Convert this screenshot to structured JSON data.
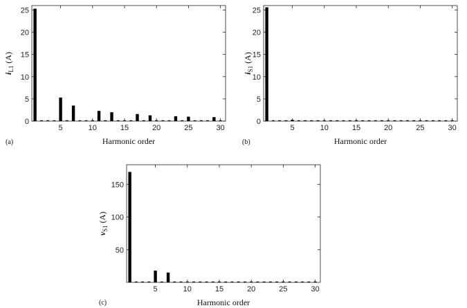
{
  "chart_data": [
    {
      "type": "bar",
      "panel_label": "(a)",
      "xlabel": "Harmonic order",
      "ylabel": "i",
      "ylabel_sub": "L1",
      "ylabel_unit": "(A)",
      "xlim": [
        0.5,
        30.8
      ],
      "ylim": [
        0,
        26
      ],
      "xticks": [
        5,
        10,
        15,
        20,
        25,
        30
      ],
      "yticks": [
        0,
        5,
        10,
        15,
        20,
        25
      ],
      "x": [
        1,
        2,
        3,
        4,
        5,
        6,
        7,
        8,
        9,
        10,
        11,
        12,
        13,
        14,
        15,
        16,
        17,
        18,
        19,
        20,
        21,
        22,
        23,
        24,
        25,
        26,
        27,
        28,
        29,
        30
      ],
      "values": [
        25.3,
        0,
        0,
        0,
        5.3,
        0,
        3.5,
        0,
        0,
        0,
        2.3,
        0,
        2.0,
        0,
        0,
        0,
        1.6,
        0,
        1.3,
        0,
        0,
        0,
        1.1,
        0,
        1.0,
        0,
        0,
        0,
        0.9,
        0
      ]
    },
    {
      "type": "bar",
      "panel_label": "(b)",
      "xlabel": "Harmonic order",
      "ylabel": "i",
      "ylabel_sub": "S1",
      "ylabel_unit": "(A)",
      "xlim": [
        0.5,
        30.8
      ],
      "ylim": [
        0,
        26
      ],
      "xticks": [
        5,
        10,
        15,
        20,
        25,
        30
      ],
      "yticks": [
        0,
        5,
        10,
        15,
        20,
        25
      ],
      "x": [
        1,
        2,
        3,
        4,
        5,
        6,
        7,
        8,
        9,
        10,
        11,
        12,
        13,
        14,
        15,
        16,
        17,
        18,
        19,
        20,
        21,
        22,
        23,
        24,
        25,
        26,
        27,
        28,
        29,
        30
      ],
      "values": [
        25.6,
        0,
        0,
        0.1,
        0.3,
        0,
        0.1,
        0,
        0.15,
        0,
        0,
        0,
        0,
        0,
        0,
        0,
        0,
        0,
        0,
        0,
        0,
        0,
        0,
        0,
        0,
        0,
        0,
        0,
        0,
        0
      ]
    },
    {
      "type": "bar",
      "panel_label": "(c)",
      "xlabel": "Harmonic order",
      "ylabel": "v",
      "ylabel_sub": "S1",
      "ylabel_unit": "(A)",
      "xlim": [
        0.5,
        30.8
      ],
      "ylim": [
        0,
        180
      ],
      "xticks": [
        5,
        10,
        15,
        20,
        25,
        30
      ],
      "yticks": [
        50,
        100,
        150
      ],
      "x": [
        1,
        2,
        3,
        4,
        5,
        6,
        7,
        8,
        9,
        10,
        11,
        12,
        13,
        14,
        15,
        16,
        17,
        18,
        19,
        20,
        21,
        22,
        23,
        24,
        25,
        26,
        27,
        28,
        29,
        30
      ],
      "values": [
        169,
        0,
        0,
        0,
        18,
        0,
        15,
        0,
        0,
        0,
        0,
        0,
        0,
        0,
        0,
        0,
        0,
        0,
        0,
        0,
        0,
        0,
        0,
        0,
        0,
        0,
        0,
        0,
        0,
        0
      ]
    }
  ]
}
